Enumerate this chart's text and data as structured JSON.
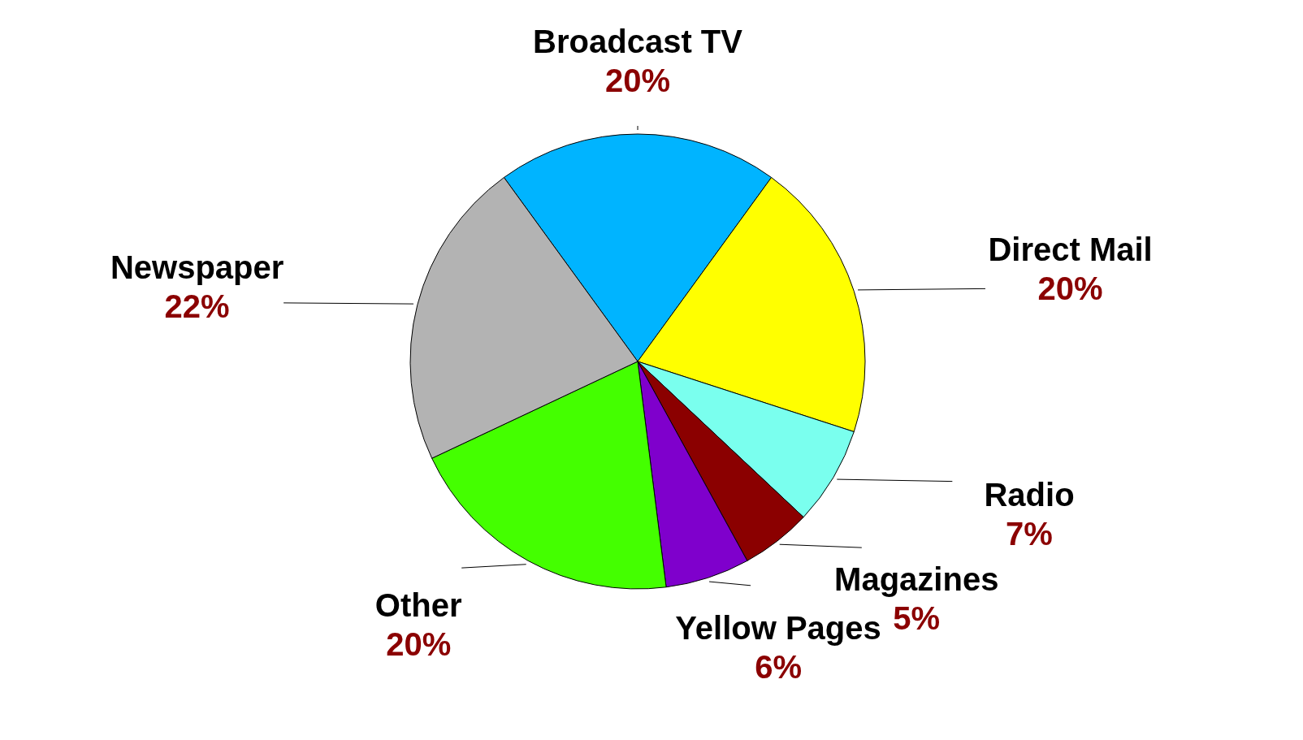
{
  "chart_data": {
    "type": "pie",
    "categories": [
      "Broadcast TV",
      "Direct Mail",
      "Radio",
      "Magazines",
      "Yellow Pages",
      "Other",
      "Newspaper"
    ],
    "values": [
      20,
      20,
      7,
      5,
      6,
      20,
      22
    ],
    "colors": [
      "#00b4ff",
      "#ffff00",
      "#7affee",
      "#8b0000",
      "#7f00cc",
      "#44ff00",
      "#b3b3b3"
    ],
    "value_labels": [
      "20%",
      "20%",
      "7%",
      "5%",
      "6%",
      "20%",
      "22%"
    ],
    "legend": false
  }
}
